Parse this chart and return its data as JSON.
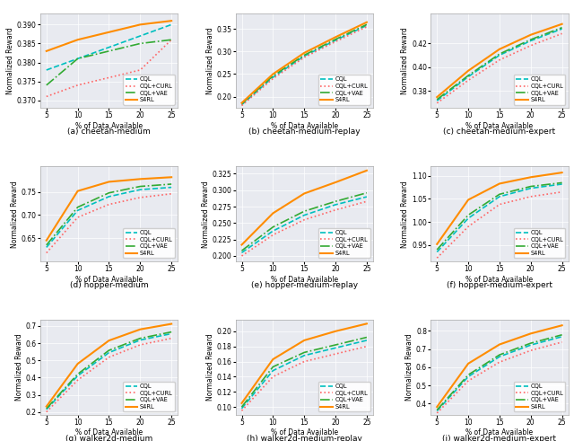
{
  "x": [
    5,
    10,
    15,
    20,
    25
  ],
  "subplots": [
    {
      "caption": "(a) cheetah-medium",
      "ylabel": "Normalized Reward",
      "xlabel": "% of Data Available",
      "ylim": [
        0.368,
        0.393
      ],
      "yticks": [
        0.37,
        0.375,
        0.38,
        0.385,
        0.39
      ],
      "series": {
        "CQL": [
          0.378,
          0.381,
          0.384,
          0.387,
          0.39
        ],
        "CQL+CURL": [
          0.371,
          0.374,
          0.376,
          0.378,
          0.386
        ],
        "CQL+VAE": [
          0.374,
          0.381,
          0.383,
          0.385,
          0.386
        ],
        "S4RL": [
          0.383,
          0.386,
          0.388,
          0.39,
          0.391
        ]
      }
    },
    {
      "caption": "(b) cheetah-medium-replay",
      "ylabel": "Normalized Reward",
      "xlabel": "% of Data Available",
      "ylim": [
        0.175,
        0.385
      ],
      "yticks": [
        0.2,
        0.25,
        0.3,
        0.35
      ],
      "series": {
        "CQL": [
          0.182,
          0.243,
          0.29,
          0.325,
          0.358
        ],
        "CQL+CURL": [
          0.18,
          0.24,
          0.287,
          0.322,
          0.355
        ],
        "CQL+VAE": [
          0.184,
          0.246,
          0.292,
          0.327,
          0.36
        ],
        "S4RL": [
          0.186,
          0.25,
          0.297,
          0.332,
          0.365
        ]
      }
    },
    {
      "caption": "(c) cheetah-medium-expert",
      "ylabel": "Normalized Reward",
      "xlabel": "% of Data Available",
      "ylim": [
        0.366,
        0.445
      ],
      "yticks": [
        0.38,
        0.4,
        0.42
      ],
      "series": {
        "CQL": [
          0.372,
          0.392,
          0.41,
          0.422,
          0.432
        ],
        "CQL+CURL": [
          0.37,
          0.389,
          0.406,
          0.418,
          0.428
        ],
        "CQL+VAE": [
          0.373,
          0.393,
          0.411,
          0.423,
          0.433
        ],
        "S4RL": [
          0.375,
          0.397,
          0.415,
          0.427,
          0.436
        ]
      }
    },
    {
      "caption": "(d) hopper-medium",
      "ylabel": "Normalized Reward",
      "xlabel": "% of Data Available",
      "ylim": [
        0.6,
        0.805
      ],
      "yticks": [
        0.65,
        0.7,
        0.75
      ],
      "series": {
        "CQL": [
          0.63,
          0.71,
          0.74,
          0.755,
          0.76
        ],
        "CQL+CURL": [
          0.618,
          0.695,
          0.723,
          0.738,
          0.746
        ],
        "CQL+VAE": [
          0.635,
          0.717,
          0.748,
          0.762,
          0.767
        ],
        "S4RL": [
          0.645,
          0.752,
          0.772,
          0.778,
          0.782
        ]
      }
    },
    {
      "caption": "(e) hopper-medium-replay",
      "ylabel": "Normalized Reward",
      "xlabel": "% of Data Available",
      "ylim": [
        0.192,
        0.336
      ],
      "yticks": [
        0.2,
        0.225,
        0.25,
        0.275,
        0.3,
        0.325
      ],
      "series": {
        "CQL": [
          0.205,
          0.238,
          0.262,
          0.278,
          0.29
        ],
        "CQL+CURL": [
          0.2,
          0.232,
          0.255,
          0.27,
          0.283
        ],
        "CQL+VAE": [
          0.208,
          0.244,
          0.268,
          0.283,
          0.296
        ],
        "S4RL": [
          0.217,
          0.265,
          0.295,
          0.312,
          0.33
        ]
      }
    },
    {
      "caption": "(f) hopper-medium-expert",
      "ylabel": "Normalized Reward",
      "xlabel": "% of Data Available",
      "ylim": [
        0.915,
        1.12
      ],
      "yticks": [
        0.95,
        1.0,
        1.05,
        1.1
      ],
      "series": {
        "CQL": [
          0.935,
          1.008,
          1.055,
          1.073,
          1.082
        ],
        "CQL+CURL": [
          0.922,
          0.99,
          1.038,
          1.055,
          1.065
        ],
        "CQL+VAE": [
          0.94,
          1.015,
          1.06,
          1.077,
          1.085
        ],
        "S4RL": [
          0.952,
          1.048,
          1.083,
          1.097,
          1.107
        ]
      }
    },
    {
      "caption": "(g) walker2d-medium",
      "ylabel": "Normalized Reward",
      "xlabel": "% of Data Available",
      "ylim": [
        0.185,
        0.735
      ],
      "yticks": [
        0.2,
        0.3,
        0.4,
        0.5,
        0.6,
        0.7
      ],
      "series": {
        "CQL": [
          0.215,
          0.41,
          0.545,
          0.618,
          0.655
        ],
        "CQL+CURL": [
          0.2,
          0.385,
          0.518,
          0.59,
          0.628
        ],
        "CQL+VAE": [
          0.22,
          0.42,
          0.558,
          0.628,
          0.665
        ],
        "S4RL": [
          0.232,
          0.48,
          0.615,
          0.68,
          0.712
        ]
      }
    },
    {
      "caption": "(h) walker2d-medium-replay",
      "ylabel": "Normalized Reward",
      "xlabel": "% of Data Available",
      "ylim": [
        0.09,
        0.215
      ],
      "yticks": [
        0.1,
        0.12,
        0.14,
        0.16,
        0.18,
        0.2
      ],
      "series": {
        "CQL": [
          0.098,
          0.148,
          0.168,
          0.178,
          0.188
        ],
        "CQL+CURL": [
          0.095,
          0.14,
          0.16,
          0.17,
          0.18
        ],
        "CQL+VAE": [
          0.1,
          0.153,
          0.172,
          0.182,
          0.192
        ],
        "S4RL": [
          0.105,
          0.163,
          0.188,
          0.2,
          0.21
        ]
      }
    },
    {
      "caption": "(i) walker2d-medium-expert",
      "ylabel": "Normalized Reward",
      "xlabel": "% of Data Available",
      "ylim": [
        0.34,
        0.86
      ],
      "yticks": [
        0.4,
        0.5,
        0.6,
        0.7,
        0.8
      ],
      "series": {
        "CQL": [
          0.36,
          0.548,
          0.658,
          0.722,
          0.768
        ],
        "CQL+CURL": [
          0.348,
          0.525,
          0.628,
          0.692,
          0.738
        ],
        "CQL+VAE": [
          0.365,
          0.558,
          0.668,
          0.732,
          0.778
        ],
        "S4RL": [
          0.382,
          0.62,
          0.725,
          0.785,
          0.83
        ]
      }
    }
  ],
  "line_styles": {
    "CQL": {
      "color": "#00BFBF",
      "linestyle": "--",
      "linewidth": 1.2
    },
    "CQL+CURL": {
      "color": "#FF6666",
      "linestyle": ":",
      "linewidth": 1.2
    },
    "CQL+VAE": {
      "color": "#33AA33",
      "linestyle": "-.",
      "linewidth": 1.2
    },
    "S4RL": {
      "color": "#FF8C00",
      "linestyle": "-",
      "linewidth": 1.5
    }
  },
  "legend_order": [
    "CQL",
    "CQL+CURL",
    "CQL+VAE",
    "S4RL"
  ],
  "xticks": [
    5,
    10,
    15,
    20,
    25
  ],
  "bg_color": "#E8EAF0",
  "fig_bg": "#FFFFFF"
}
